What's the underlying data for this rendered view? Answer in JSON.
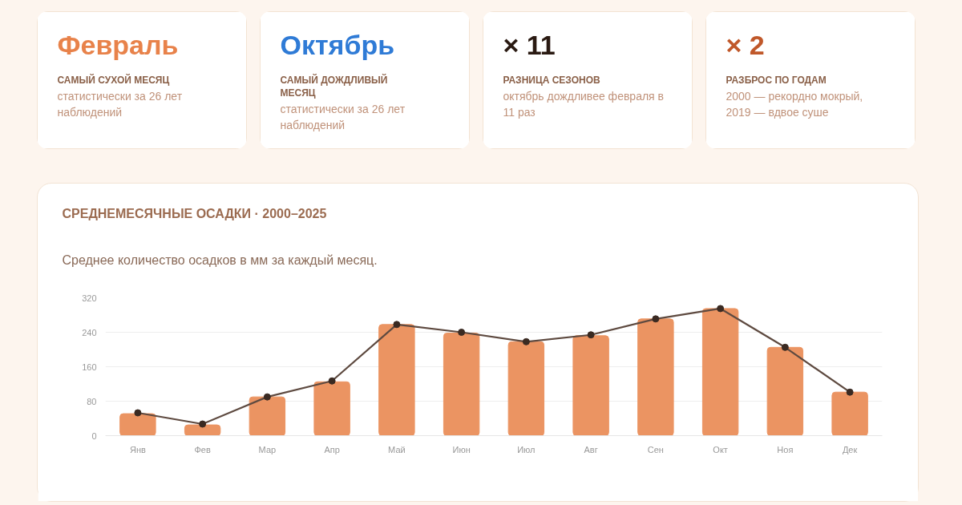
{
  "chart_data": [
    {
      "type": "other",
      "title": "Февраль",
      "subtitle": "САМЫЙ СУХОЙ МЕСЯЦ",
      "annotations": [
        "статистически за 26 лет наблюдений"
      ]
    },
    {
      "type": "other",
      "title": "Октябрь",
      "subtitle": "САМЫЙ ДОЖДЛИВЫЙ МЕСЯЦ",
      "annotations": [
        "статистически за 26 лет наблюдений"
      ]
    },
    {
      "type": "other",
      "title": "× 11",
      "subtitle": "РАЗНИЦА СЕЗОНОВ",
      "annotations": [
        "октябрь дождливее февраля в 11 раз"
      ]
    },
    {
      "type": "other",
      "title": "× 2",
      "subtitle": "РАЗБРОС ПО ГОДАМ",
      "annotations": [
        "2000 — рекордно мокрый, 2019 — вдвое суше"
      ]
    },
    {
      "type": "bar",
      "title": "СРЕДНЕМЕСЯЧНЫЕ ОСАДКИ · 2000–2025",
      "subtitle": "Среднее количество осадков в мм за каждый месяц.",
      "categories": [
        "Янв",
        "Фев",
        "Мар",
        "Апр",
        "Май",
        "Июн",
        "Июл",
        "Авг",
        "Сен",
        "Окт",
        "Ноя",
        "Дек"
      ],
      "series": [
        {
          "type": "bar",
          "color": "#eb9462",
          "values": [
            51,
            25,
            90,
            125,
            258,
            238,
            218,
            232,
            271,
            295,
            205,
            101
          ]
        },
        {
          "type": "line",
          "color": "#5e4a40",
          "marker": "circle",
          "values": [
            53,
            27,
            90,
            127,
            258,
            240,
            218,
            234,
            271,
            295,
            205,
            101
          ]
        }
      ],
      "ylim": [
        0,
        320
      ],
      "yticks": [
        0,
        80,
        160,
        240,
        320
      ],
      "grid": "y"
    }
  ]
}
